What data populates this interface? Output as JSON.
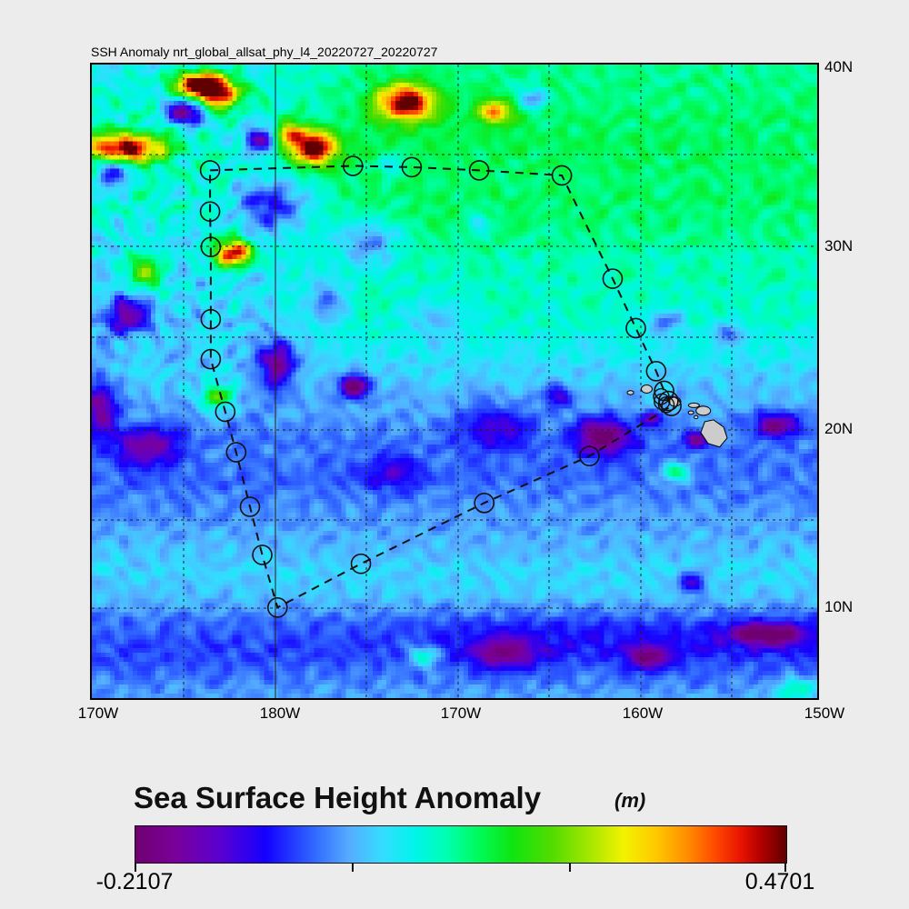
{
  "page": {
    "background": "#ececec"
  },
  "map": {
    "title": "SSH Anomaly nrt_global_allsat_phy_l4_20220727_20220727",
    "y_tick_labels": [
      "40N",
      "30N",
      "20N",
      "10N"
    ],
    "x_tick_labels": [
      "170W",
      "180W",
      "170W",
      "160W",
      "150W"
    ],
    "land_color": "#cccccc",
    "islands_name": "Hawaiian Islands"
  },
  "colorbar": {
    "title": "Sea Surface Height Anomaly",
    "units_label": "(m)",
    "min_label": "-0.2107",
    "max_label": "0.4701"
  },
  "chart_data": {
    "type": "heatmap",
    "title": "SSH Anomaly nrt_global_allsat_phy_l4_20220727_20220727",
    "variable": "Sea Surface Height Anomaly",
    "units": "m",
    "value_min": -0.2107,
    "value_max": 0.4701,
    "x_tick_labels": [
      "170W",
      "180W",
      "170W",
      "160W",
      "150W"
    ],
    "y_tick_labels": [
      "40N",
      "30N",
      "20N",
      "10N"
    ],
    "grid_deg_spacing": 5,
    "legend_position": "bottom",
    "colormap_stops": [
      [
        0.0,
        "#6F0070"
      ],
      [
        0.06,
        "#7A0099"
      ],
      [
        0.13,
        "#5A00D0"
      ],
      [
        0.2,
        "#1400FF"
      ],
      [
        0.27,
        "#2E62FF"
      ],
      [
        0.33,
        "#55AEFF"
      ],
      [
        0.38,
        "#33DDFF"
      ],
      [
        0.43,
        "#00F5E9"
      ],
      [
        0.48,
        "#00FFAE"
      ],
      [
        0.53,
        "#00FA55"
      ],
      [
        0.58,
        "#10E410"
      ],
      [
        0.64,
        "#52DC00"
      ],
      [
        0.7,
        "#A8E800"
      ],
      [
        0.75,
        "#F2F200"
      ],
      [
        0.8,
        "#FFC800"
      ],
      [
        0.85,
        "#FF8A00"
      ],
      [
        0.89,
        "#FF4A00"
      ],
      [
        0.93,
        "#E81400"
      ],
      [
        0.96,
        "#B40000"
      ],
      [
        1.0,
        "#600000"
      ]
    ],
    "base_profile": [
      [
        0.0,
        0.07
      ],
      [
        0.08,
        0.09
      ],
      [
        0.22,
        0.09
      ],
      [
        0.3,
        0.06
      ],
      [
        0.4,
        0.045
      ],
      [
        0.5,
        0.035
      ],
      [
        0.58,
        -0.01
      ],
      [
        0.66,
        -0.02
      ],
      [
        0.73,
        0.01
      ],
      [
        0.8,
        0.045
      ],
      [
        0.84,
        0.03
      ],
      [
        0.88,
        -0.02
      ],
      [
        0.92,
        -0.045
      ],
      [
        0.96,
        -0.02
      ],
      [
        1.0,
        0.01
      ]
    ],
    "anomaly_centers": [
      [
        0.169,
        0.043,
        0.024,
        0.018,
        0.42
      ],
      [
        0.044,
        0.132,
        0.04,
        0.016,
        0.4
      ],
      [
        0.306,
        0.132,
        0.022,
        0.018,
        0.4
      ],
      [
        0.434,
        0.06,
        0.028,
        0.02,
        0.36
      ],
      [
        0.556,
        0.074,
        0.018,
        0.014,
        0.22
      ],
      [
        0.196,
        0.298,
        0.018,
        0.016,
        0.38
      ],
      [
        0.075,
        0.329,
        0.02,
        0.018,
        0.16
      ],
      [
        0.172,
        0.525,
        0.016,
        0.013,
        0.2
      ],
      [
        0.273,
        0.109,
        0.014,
        0.012,
        0.25
      ],
      [
        0.138,
        0.029,
        0.02,
        0.012,
        0.3
      ],
      [
        0.131,
        0.074,
        0.02,
        0.016,
        -0.28
      ],
      [
        0.231,
        0.117,
        0.016,
        0.014,
        -0.24
      ],
      [
        0.031,
        0.172,
        0.016,
        0.016,
        -0.18
      ],
      [
        0.05,
        0.396,
        0.022,
        0.022,
        -0.2
      ],
      [
        0.256,
        0.472,
        0.018,
        0.028,
        -0.22
      ],
      [
        0.363,
        0.507,
        0.015,
        0.013,
        -0.26
      ],
      [
        0.075,
        0.604,
        0.03,
        0.022,
        -0.16
      ],
      [
        0.013,
        0.537,
        0.015,
        0.03,
        -0.18
      ],
      [
        0.25,
        0.222,
        0.035,
        0.028,
        -0.17
      ],
      [
        0.381,
        0.279,
        0.028,
        0.028,
        -0.13
      ],
      [
        0.606,
        0.053,
        0.014,
        0.012,
        -0.14
      ],
      [
        0.413,
        0.16,
        0.012,
        0.01,
        -0.1
      ],
      [
        0.325,
        0.372,
        0.02,
        0.02,
        -0.1
      ],
      [
        0.475,
        0.4,
        0.025,
        0.025,
        -0.08
      ],
      [
        0.556,
        0.572,
        0.035,
        0.025,
        -0.11
      ],
      [
        0.413,
        0.644,
        0.03,
        0.02,
        -0.08
      ],
      [
        0.791,
        0.405,
        0.018,
        0.014,
        -0.12
      ],
      [
        0.875,
        0.422,
        0.016,
        0.013,
        -0.1
      ],
      [
        0.535,
        0.248,
        0.012,
        0.01,
        -0.08
      ],
      [
        0.706,
        0.587,
        0.028,
        0.02,
        -0.22
      ],
      [
        0.944,
        0.569,
        0.02,
        0.014,
        -0.2
      ],
      [
        0.771,
        0.559,
        0.01,
        0.008,
        -0.15
      ],
      [
        0.833,
        0.592,
        0.012,
        0.01,
        -0.18
      ],
      [
        0.806,
        0.644,
        0.012,
        0.01,
        0.18
      ],
      [
        0.644,
        0.525,
        0.015,
        0.012,
        -0.12
      ],
      [
        0.828,
        0.818,
        0.013,
        0.011,
        -0.16
      ],
      [
        0.569,
        0.93,
        0.03,
        0.018,
        -0.14
      ],
      [
        0.769,
        0.937,
        0.02,
        0.014,
        -0.16
      ],
      [
        0.931,
        0.898,
        0.035,
        0.012,
        -0.2
      ],
      [
        0.456,
        0.933,
        0.015,
        0.012,
        0.14
      ],
      [
        0.969,
        0.985,
        0.02,
        0.012,
        0.12
      ]
    ],
    "track": {
      "style": "dashed-line-with-open-circles",
      "points": [
        [
          0.163,
          0.167
        ],
        [
          0.36,
          0.16
        ],
        [
          0.441,
          0.162
        ],
        [
          0.534,
          0.167
        ],
        [
          0.648,
          0.175
        ],
        [
          0.718,
          0.338
        ],
        [
          0.75,
          0.416
        ],
        [
          0.778,
          0.484
        ],
        [
          0.789,
          0.515
        ],
        [
          0.795,
          0.531
        ],
        [
          0.799,
          0.539
        ],
        [
          0.686,
          0.618
        ],
        [
          0.541,
          0.692
        ],
        [
          0.371,
          0.788
        ],
        [
          0.256,
          0.857
        ],
        [
          0.235,
          0.774
        ],
        [
          0.218,
          0.698
        ],
        [
          0.199,
          0.612
        ],
        [
          0.184,
          0.548
        ],
        [
          0.164,
          0.465
        ],
        [
          0.164,
          0.402
        ],
        [
          0.164,
          0.288
        ],
        [
          0.163,
          0.232
        ]
      ],
      "extra_circle_points": [
        [
          0.785,
          0.524
        ],
        [
          0.792,
          0.537
        ],
        [
          0.786,
          0.532
        ]
      ]
    },
    "islands": {
      "ellipses": [
        [
          0.7425,
          0.5179,
          0.0045,
          0.0032
        ],
        [
          0.765,
          0.5122,
          0.0075,
          0.0064
        ],
        [
          0.804,
          0.5322,
          0.008,
          0.0072
        ],
        [
          0.83,
          0.5379,
          0.0075,
          0.0036
        ],
        [
          0.826,
          0.5494,
          0.0038,
          0.0028
        ],
        [
          0.833,
          0.5565,
          0.0026,
          0.0021
        ],
        [
          0.843,
          0.5465,
          0.01,
          0.0072
        ]
      ],
      "big_island_polygon": [
        [
          0.845,
          0.5637
        ],
        [
          0.857,
          0.5608
        ],
        [
          0.871,
          0.5722
        ],
        [
          0.876,
          0.5894
        ],
        [
          0.8655,
          0.6037
        ],
        [
          0.8495,
          0.598
        ],
        [
          0.8395,
          0.5808
        ]
      ]
    }
  }
}
